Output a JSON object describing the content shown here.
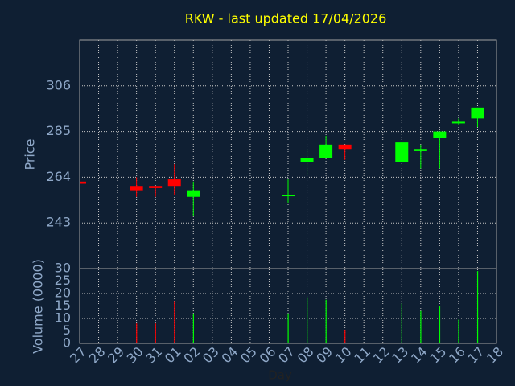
{
  "chart_data": [
    {
      "type": "candlestick",
      "title": "RKW - last updated 17/04/2026",
      "ylabel": "Price",
      "open": [
        262,
        null,
        null,
        260,
        260,
        263,
        255,
        null,
        null,
        null,
        null,
        256,
        271,
        273,
        279,
        null,
        null,
        271,
        276,
        282,
        289,
        291,
        null
      ],
      "high": [
        262,
        null,
        null,
        264,
        260,
        270,
        262,
        null,
        null,
        null,
        null,
        263,
        277,
        283,
        279,
        null,
        null,
        280,
        279,
        285,
        291,
        296,
        null
      ],
      "low": [
        261,
        null,
        null,
        255,
        255,
        256,
        246,
        null,
        null,
        null,
        null,
        252,
        265,
        273,
        272,
        null,
        null,
        271,
        268,
        268,
        288,
        287,
        null
      ],
      "close": [
        261,
        null,
        null,
        258,
        259,
        260,
        258,
        null,
        null,
        null,
        null,
        256,
        273,
        279,
        277,
        null,
        null,
        280,
        277,
        285,
        289.5,
        296,
        null
      ],
      "up_color": "#00ff00",
      "down_color": "#ff0000",
      "ylim": [
        222,
        327
      ],
      "yticks": [
        243,
        264,
        285,
        306
      ],
      "grid": true
    },
    {
      "type": "bar",
      "ylabel": "Volume (0000)",
      "xlabel": "Day",
      "categories": [
        "27",
        "28",
        "29",
        "30",
        "31",
        "01",
        "02",
        "03",
        "04",
        "05",
        "06",
        "07",
        "08",
        "09",
        "10",
        "11",
        "12",
        "13",
        "14",
        "15",
        "16",
        "17",
        "18"
      ],
      "values": [
        null,
        null,
        null,
        8,
        8,
        17,
        12,
        null,
        null,
        null,
        null,
        12,
        18.5,
        17.5,
        5.5,
        null,
        null,
        16,
        13,
        15,
        9.5,
        29,
        null
      ],
      "ylim": [
        0,
        30
      ],
      "yticks": [
        0,
        5,
        10,
        15,
        20,
        25,
        30
      ],
      "grid": true
    }
  ]
}
